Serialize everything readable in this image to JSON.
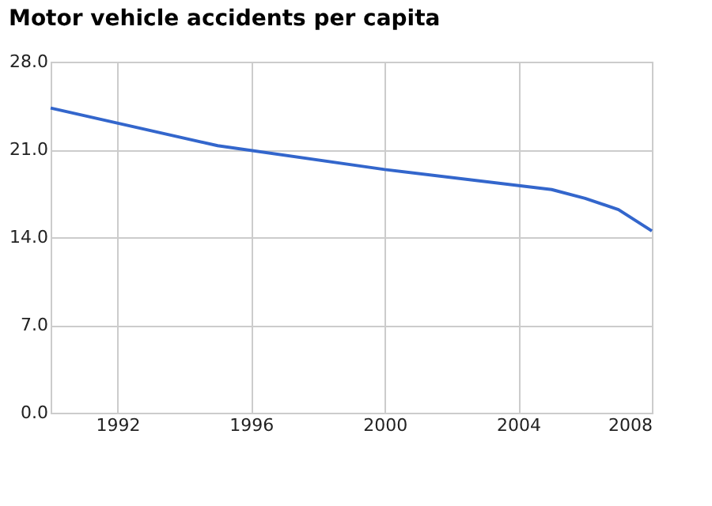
{
  "chart_data": {
    "type": "line",
    "title": "Motor vehicle accidents per capita",
    "x": [
      1990,
      1995,
      2000,
      2005,
      2006,
      2007,
      2008
    ],
    "series": [
      {
        "color": "#3366cc",
        "values": [
          24.3,
          21.3,
          19.4,
          17.8,
          17.1,
          16.2,
          14.5
        ]
      }
    ],
    "xlim": [
      1990,
      2008
    ],
    "xticks": [
      1992,
      1996,
      2000,
      2004,
      2008
    ],
    "ylim": [
      0,
      28
    ],
    "yticks": [
      {
        "value": 0,
        "label": "0.0"
      },
      {
        "value": 7,
        "label": "7.0"
      },
      {
        "value": 14,
        "label": "14.0"
      },
      {
        "value": 21,
        "label": "21.0"
      },
      {
        "value": 28,
        "label": "28.0"
      }
    ],
    "grid": true,
    "marker": "none",
    "line_style": "solid",
    "legend": false
  }
}
